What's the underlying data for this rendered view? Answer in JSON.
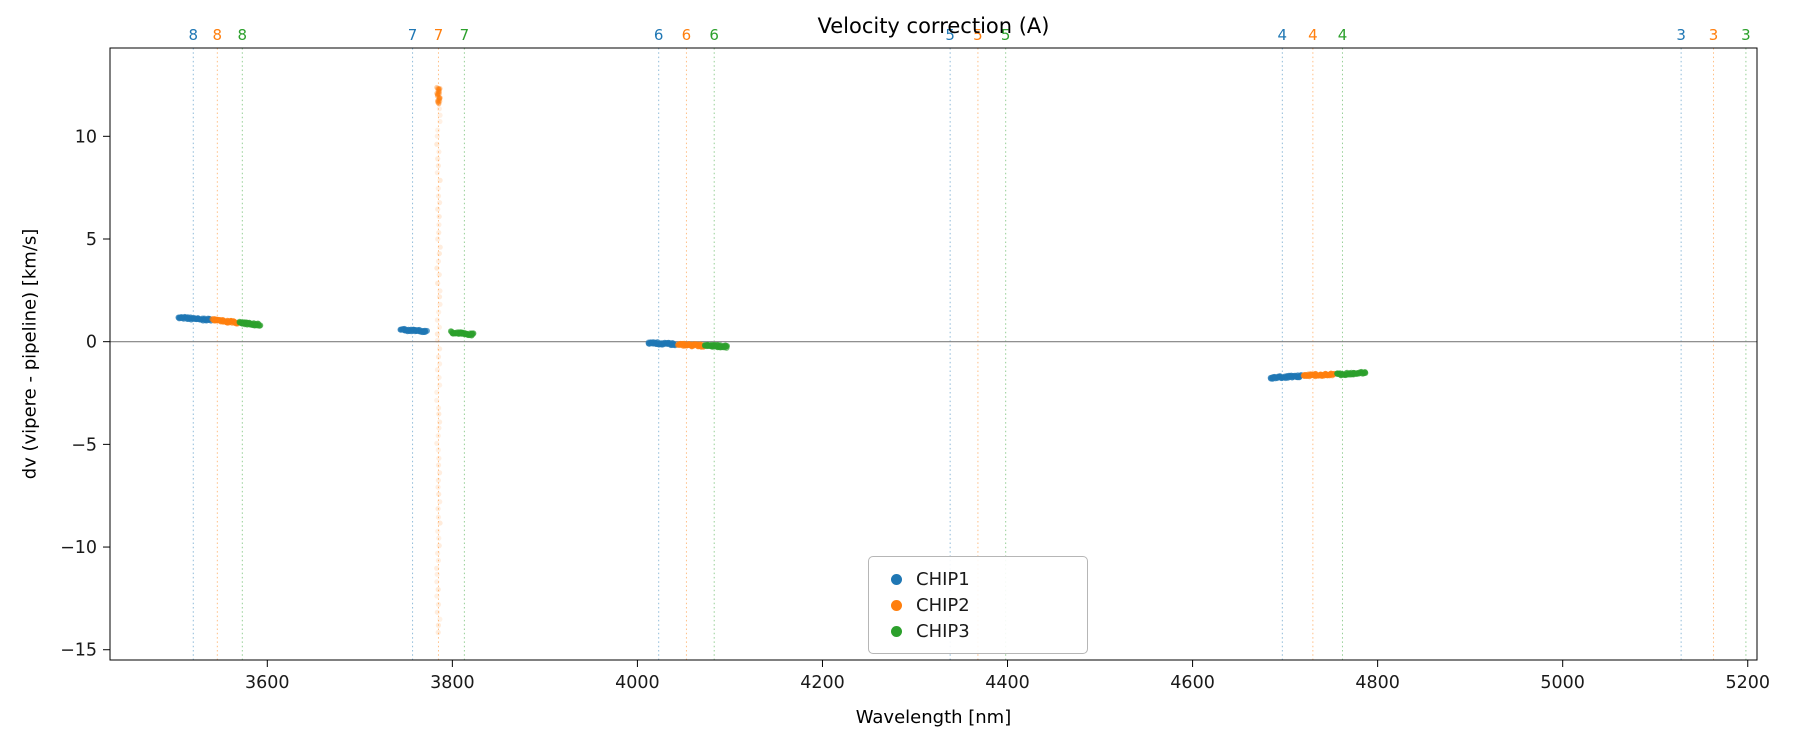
{
  "chart_data": {
    "type": "scatter",
    "title": "Velocity correction (A)",
    "xlabel": "Wavelength [nm]",
    "ylabel": "dv (vipere - pipeline) [km/s]",
    "xlim": [
      3430,
      5210
    ],
    "ylim": [
      -15.5,
      14.3
    ],
    "xticks": [
      3600,
      3800,
      4000,
      4200,
      4400,
      4600,
      4800,
      5000,
      5200
    ],
    "xtick_labels": [
      "3600",
      "3800",
      "4000",
      "4200",
      "4400",
      "4600",
      "4800",
      "5000",
      "5200"
    ],
    "yticks": [
      -15,
      -10,
      -5,
      0,
      5,
      10
    ],
    "ytick_labels": [
      "−15",
      "−10",
      "−5",
      "0",
      "5",
      "10"
    ],
    "zero_line_y": 0,
    "grid": false,
    "series_colors": {
      "CHIP1": "#1f77b4",
      "CHIP2": "#ff7f0e",
      "CHIP3": "#2ca02c"
    },
    "legend": {
      "position": "lower center",
      "items": [
        {
          "label": "CHIP1",
          "chip": "CHIP1"
        },
        {
          "label": "CHIP2",
          "chip": "CHIP2"
        },
        {
          "label": "CHIP3",
          "chip": "CHIP3"
        }
      ]
    },
    "order_markers": [
      {
        "label": "8",
        "lines": [
          {
            "chip": "CHIP1",
            "x": 3520
          },
          {
            "chip": "CHIP2",
            "x": 3546
          },
          {
            "chip": "CHIP3",
            "x": 3573
          }
        ]
      },
      {
        "label": "7",
        "lines": [
          {
            "chip": "CHIP1",
            "x": 3757
          },
          {
            "chip": "CHIP2",
            "x": 3785
          },
          {
            "chip": "CHIP3",
            "x": 3813
          }
        ]
      },
      {
        "label": "6",
        "lines": [
          {
            "chip": "CHIP1",
            "x": 4023
          },
          {
            "chip": "CHIP2",
            "x": 4053
          },
          {
            "chip": "CHIP3",
            "x": 4083
          }
        ]
      },
      {
        "label": "5",
        "lines": [
          {
            "chip": "CHIP1",
            "x": 4338
          },
          {
            "chip": "CHIP2",
            "x": 4368
          },
          {
            "chip": "CHIP3",
            "x": 4398
          }
        ]
      },
      {
        "label": "4",
        "lines": [
          {
            "chip": "CHIP1",
            "x": 4697
          },
          {
            "chip": "CHIP2",
            "x": 4730
          },
          {
            "chip": "CHIP3",
            "x": 4762
          }
        ]
      },
      {
        "label": "3",
        "lines": [
          {
            "chip": "CHIP1",
            "x": 5128
          },
          {
            "chip": "CHIP2",
            "x": 5163
          },
          {
            "chip": "CHIP3",
            "x": 5198
          }
        ]
      }
    ],
    "clusters": [
      {
        "chip": "CHIP1",
        "order": "8",
        "x0": 3504,
        "x1": 3539,
        "y0": 1.18,
        "y1": 1.05,
        "n": 50,
        "alpha": 0.6,
        "seed": 11
      },
      {
        "chip": "CHIP2",
        "order": "8",
        "x0": 3541,
        "x1": 3568,
        "y0": 1.05,
        "y1": 0.93,
        "n": 45,
        "alpha": 0.6,
        "seed": 12
      },
      {
        "chip": "CHIP3",
        "order": "8",
        "x0": 3570,
        "x1": 3592,
        "y0": 0.92,
        "y1": 0.82,
        "n": 40,
        "alpha": 0.6,
        "seed": 13
      },
      {
        "chip": "CHIP1",
        "order": "7",
        "x0": 3744,
        "x1": 3772,
        "y0": 0.58,
        "y1": 0.5,
        "n": 45,
        "alpha": 0.6,
        "seed": 21
      },
      {
        "chip": "CHIP3",
        "order": "7",
        "x0": 3799,
        "x1": 3823,
        "y0": 0.46,
        "y1": 0.35,
        "n": 40,
        "alpha": 0.6,
        "seed": 23
      },
      {
        "chip": "CHIP1",
        "order": "6",
        "x0": 4012,
        "x1": 4041,
        "y0": -0.05,
        "y1": -0.13,
        "n": 45,
        "alpha": 0.6,
        "seed": 31
      },
      {
        "chip": "CHIP2",
        "order": "6",
        "x0": 4044,
        "x1": 4071,
        "y0": -0.13,
        "y1": -0.2,
        "n": 45,
        "alpha": 0.6,
        "seed": 32
      },
      {
        "chip": "CHIP3",
        "order": "6",
        "x0": 4073,
        "x1": 4097,
        "y0": -0.17,
        "y1": -0.25,
        "n": 40,
        "alpha": 0.6,
        "seed": 33
      },
      {
        "chip": "CHIP1",
        "order": "4",
        "x0": 4684,
        "x1": 4717,
        "y0": -1.76,
        "y1": -1.68,
        "n": 50,
        "alpha": 0.6,
        "seed": 41
      },
      {
        "chip": "CHIP2",
        "order": "4",
        "x0": 4720,
        "x1": 4753,
        "y0": -1.66,
        "y1": -1.58,
        "n": 50,
        "alpha": 0.6,
        "seed": 42
      },
      {
        "chip": "CHIP3",
        "order": "4",
        "x0": 4756,
        "x1": 4787,
        "y0": -1.6,
        "y1": -1.5,
        "n": 45,
        "alpha": 0.6,
        "seed": 43
      }
    ],
    "outlier_streak": {
      "chip": "CHIP2",
      "order": "7",
      "x": 3785,
      "x_jitter": 1.8,
      "y_min": -14.2,
      "y_max": 12.1,
      "n": 75,
      "alpha": 0.1,
      "seed": 77,
      "cap": {
        "y_min": 11.6,
        "y_max": 12.4,
        "n": 28,
        "alpha": 0.35,
        "seed": 78
      }
    }
  }
}
